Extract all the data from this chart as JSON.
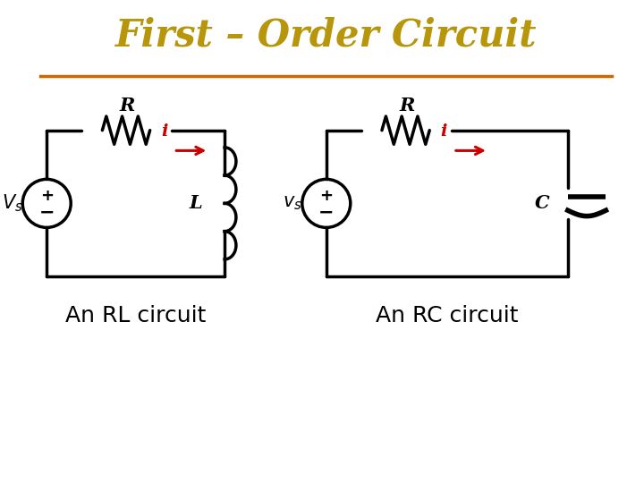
{
  "title": "First – Order Circuit",
  "title_color": "#B8960C",
  "title_fontsize": 30,
  "title_font": "serif",
  "divider_color": "#CC6600",
  "bg_color": "#FFFFFF",
  "circuit_color": "#000000",
  "current_color": "#CC0000",
  "label_RL": "An RL circuit",
  "label_RC": "An RC circuit",
  "label_fontsize": 18
}
